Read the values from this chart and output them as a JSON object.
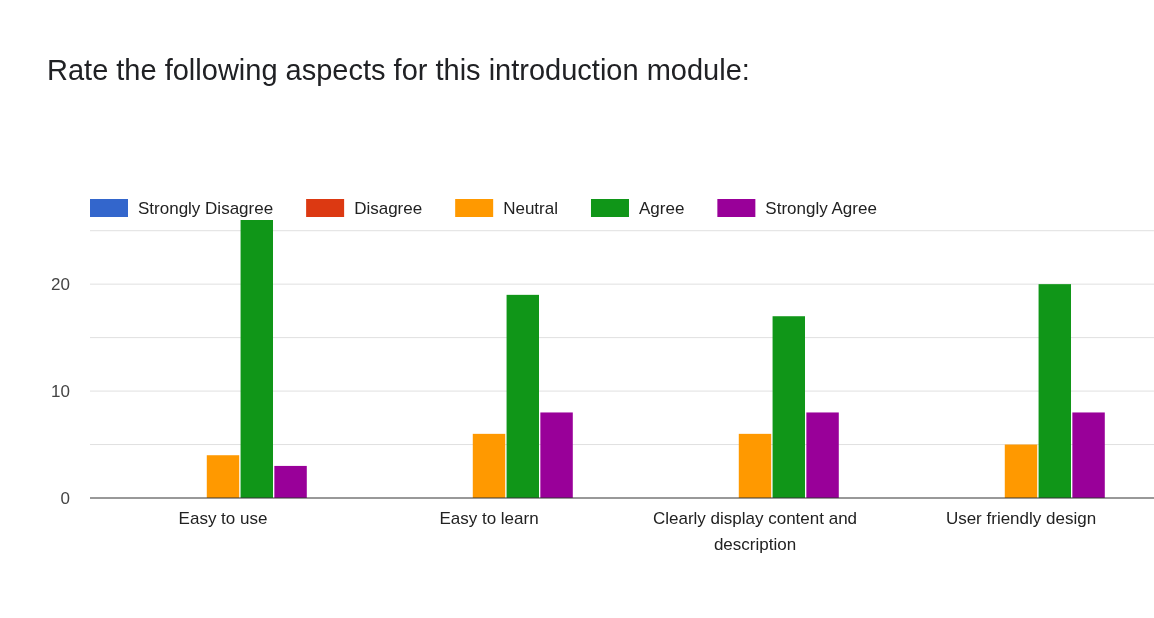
{
  "chart_data": {
    "type": "bar",
    "title": "Rate the following aspects for this introduction module:",
    "categories": [
      "Easy to use",
      "Easy to learn",
      "Clearly display content and description",
      "User friendly design"
    ],
    "series": [
      {
        "name": "Strongly Disagree",
        "color": "#3366cc",
        "values": [
          0,
          0,
          0,
          0
        ]
      },
      {
        "name": "Disagree",
        "color": "#dc3912",
        "values": [
          0,
          0,
          0,
          0
        ]
      },
      {
        "name": "Neutral",
        "color": "#ff9900",
        "values": [
          4,
          6,
          6,
          5
        ]
      },
      {
        "name": "Agree",
        "color": "#109618",
        "values": [
          26,
          19,
          17,
          20
        ]
      },
      {
        "name": "Strongly Agree",
        "color": "#990099",
        "values": [
          3,
          8,
          8,
          8
        ]
      }
    ],
    "ylim": [
      0,
      26
    ],
    "yticks": [
      0,
      {
        "value": 5,
        "label": null
      },
      10,
      {
        "value": 15,
        "label": null
      },
      20,
      {
        "value": 25,
        "label": null
      }
    ],
    "grid": "y",
    "legend": "top left"
  }
}
